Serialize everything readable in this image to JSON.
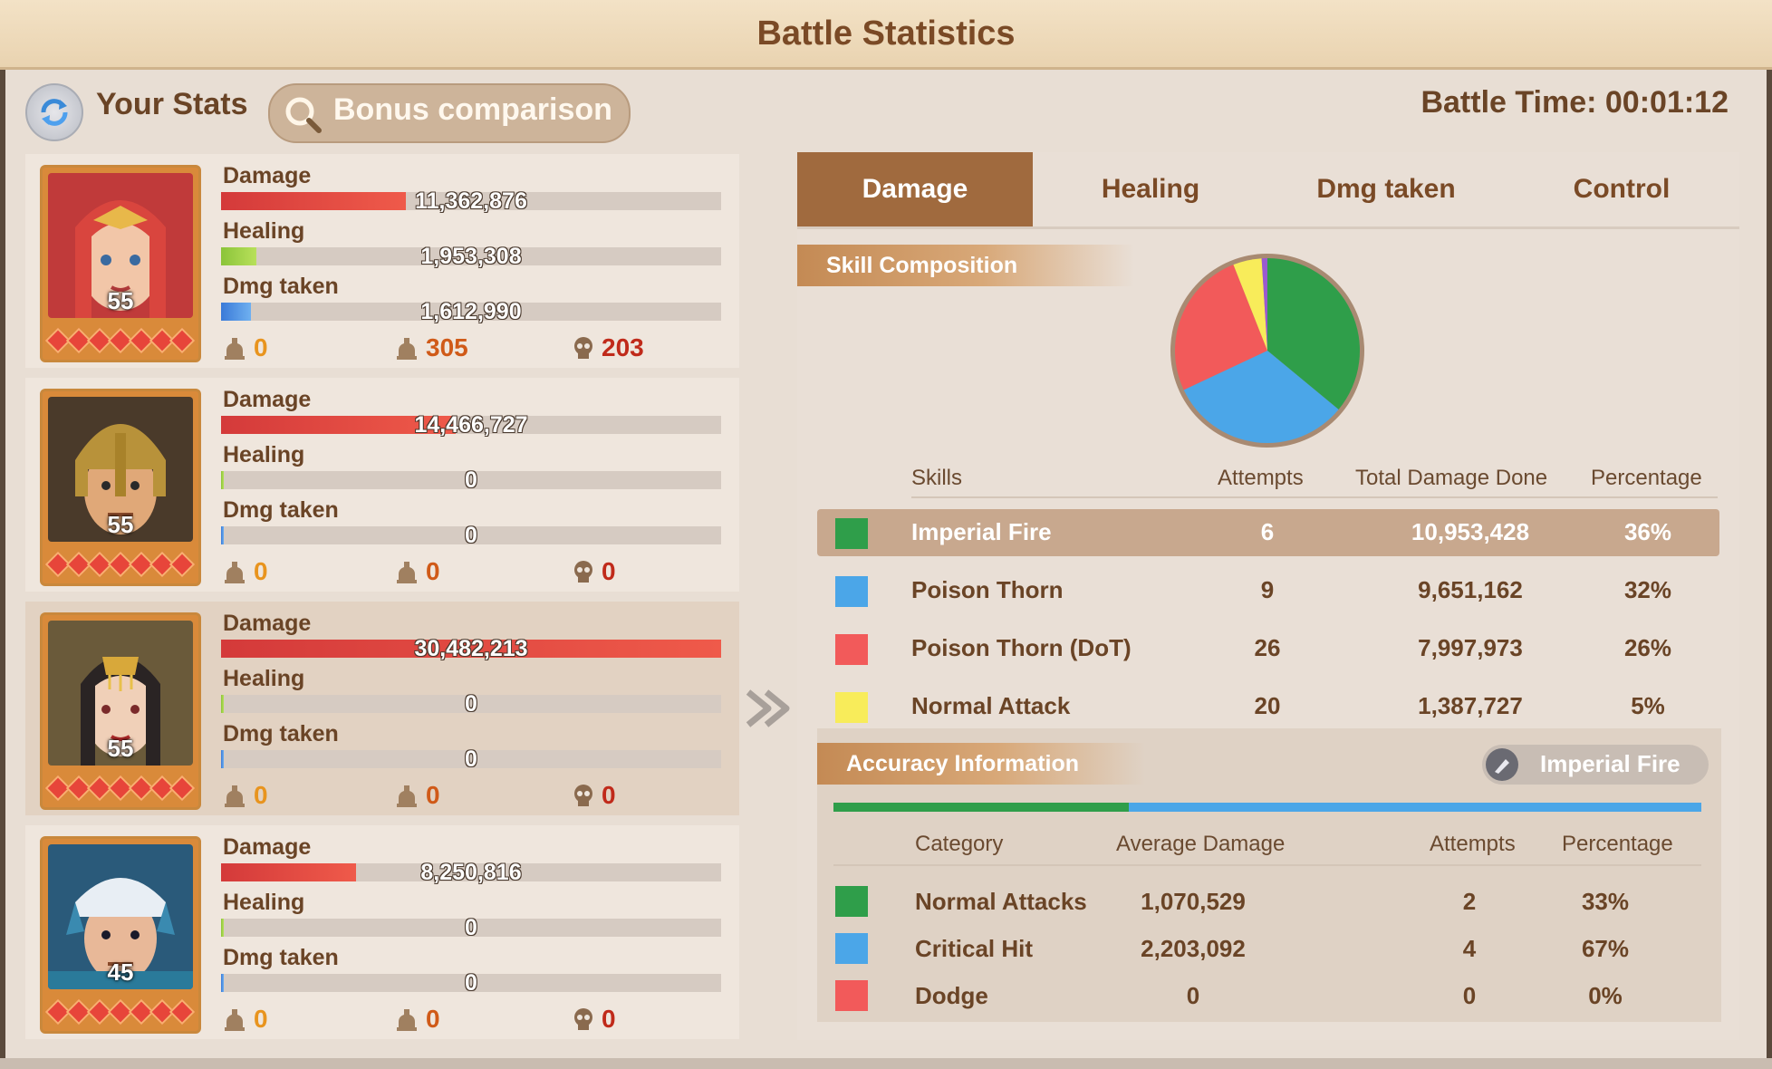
{
  "window": {
    "title": "Battle Statistics"
  },
  "header": {
    "your_stats": "Your Stats",
    "bonus_comparison": "Bonus comparison",
    "battle_time": "Battle Time: 00:01:12"
  },
  "stat_labels": {
    "damage": "Damage",
    "healing": "Healing",
    "dmg_taken": "Dmg taken"
  },
  "heroes": [
    {
      "level": "55",
      "damage": "11,362,876",
      "healing": "1,953,308",
      "dmg_taken": "1,612,990",
      "damage_ratio": 0.37,
      "healing_ratio": 0.07,
      "taken_ratio": 0.06,
      "kills": [
        "0",
        "305",
        "203"
      ],
      "portrait": "red-haired heroine with gold tiara"
    },
    {
      "level": "55",
      "damage": "14,466,727",
      "healing": "0",
      "dmg_taken": "0",
      "damage_ratio": 0.47,
      "healing_ratio": 0.0,
      "taken_ratio": 0.0,
      "kills": [
        "0",
        "0",
        "0"
      ],
      "portrait": "warrior with golden spartan helmet"
    },
    {
      "level": "55",
      "damage": "30,482,213",
      "healing": "0",
      "dmg_taken": "0",
      "damage_ratio": 1.0,
      "healing_ratio": 0.0,
      "taken_ratio": 0.0,
      "kills": [
        "0",
        "0",
        "0"
      ],
      "portrait": "dark-haired empress with gold headdress"
    },
    {
      "level": "45",
      "damage": "8,250,816",
      "healing": "0",
      "dmg_taken": "0",
      "damage_ratio": 0.27,
      "healing_ratio": 0.0,
      "taken_ratio": 0.0,
      "kills": [
        "0",
        "0",
        "0"
      ],
      "portrait": "samurai with white headband"
    }
  ],
  "tabs": [
    "Damage",
    "Healing",
    "Dmg taken",
    "Control"
  ],
  "skill_composition": {
    "title": "Skill Composition",
    "headers": [
      "Skills",
      "Attempts",
      "Total Damage Done",
      "Percentage"
    ],
    "rows": [
      {
        "name": "Imperial Fire",
        "attempts": "6",
        "total": "10,953,428",
        "pct": "36%",
        "color": "#2f9e4a"
      },
      {
        "name": "Poison Thorn",
        "attempts": "9",
        "total": "9,651,162",
        "pct": "32%",
        "color": "#4ba6e8"
      },
      {
        "name": "Poison Thorn (DoT)",
        "attempts": "26",
        "total": "7,997,973",
        "pct": "26%",
        "color": "#f25a5a"
      },
      {
        "name": "Normal Attack",
        "attempts": "20",
        "total": "1,387,727",
        "pct": "5%",
        "color": "#f8ec5a"
      }
    ],
    "pie": [
      {
        "value": 36,
        "color": "#2f9e4a"
      },
      {
        "value": 32,
        "color": "#4ba6e8"
      },
      {
        "value": 26,
        "color": "#f25a5a"
      },
      {
        "value": 5,
        "color": "#f8ec5a"
      },
      {
        "value": 1,
        "color": "#9a5ad0"
      }
    ]
  },
  "accuracy": {
    "title": "Accuracy Information",
    "skill": "Imperial Fire",
    "headers": [
      "Category",
      "Average Damage",
      "Attempts",
      "Percentage"
    ],
    "rows": [
      {
        "name": "Normal Attacks",
        "avg": "1,070,529",
        "attempts": "2",
        "pct": "33%",
        "color": "#2f9e4a"
      },
      {
        "name": "Critical Hit",
        "avg": "2,203,092",
        "attempts": "4",
        "pct": "67%",
        "color": "#4ba6e8"
      },
      {
        "name": "Dodge",
        "avg": "0",
        "attempts": "0",
        "pct": "0%",
        "color": "#f25a5a"
      }
    ],
    "bar_ratio": 0.34
  }
}
